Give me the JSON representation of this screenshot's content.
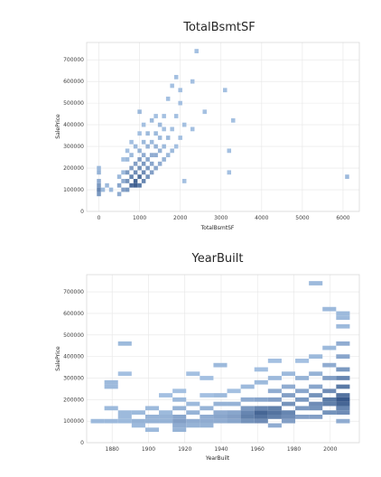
{
  "chart_data": [
    {
      "type": "heatmap",
      "title": "TotalBsmtSF",
      "xlabel": "TotalBsmtSF",
      "ylabel": "SalePrice",
      "xlim": [
        -300,
        6400
      ],
      "ylim": [
        0,
        780000
      ],
      "xticks": [
        0,
        1000,
        2000,
        3000,
        4000,
        5000,
        6000
      ],
      "yticks": [
        0,
        100000,
        200000,
        300000,
        400000,
        500000,
        600000,
        700000
      ],
      "xtick_labels": [
        "0",
        "1000",
        "2000",
        "3000",
        "4000",
        "5000",
        "6000"
      ],
      "ytick_labels": [
        "0",
        "100000",
        "200000",
        "300000",
        "400000",
        "500000",
        "600000",
        "700000"
      ],
      "grid": true,
      "bin_size": [
        100,
        20000
      ],
      "bins": [
        [
          0,
          80000,
          0.45
        ],
        [
          0,
          100000,
          0.6
        ],
        [
          0,
          120000,
          0.45
        ],
        [
          0,
          140000,
          0.3
        ],
        [
          0,
          180000,
          0.25
        ],
        [
          0,
          200000,
          0.2
        ],
        [
          100,
          100000,
          0.2
        ],
        [
          200,
          120000,
          0.2
        ],
        [
          300,
          100000,
          0.2
        ],
        [
          500,
          80000,
          0.3
        ],
        [
          500,
          120000,
          0.35
        ],
        [
          500,
          160000,
          0.2
        ],
        [
          600,
          100000,
          0.4
        ],
        [
          600,
          140000,
          0.3
        ],
        [
          600,
          180000,
          0.2
        ],
        [
          600,
          240000,
          0.15
        ],
        [
          700,
          100000,
          0.45
        ],
        [
          700,
          140000,
          0.5
        ],
        [
          700,
          180000,
          0.45
        ],
        [
          700,
          240000,
          0.2
        ],
        [
          700,
          280000,
          0.15
        ],
        [
          800,
          120000,
          0.8
        ],
        [
          800,
          160000,
          0.6
        ],
        [
          800,
          200000,
          0.4
        ],
        [
          800,
          260000,
          0.2
        ],
        [
          800,
          320000,
          0.15
        ],
        [
          900,
          120000,
          0.9
        ],
        [
          900,
          140000,
          0.85
        ],
        [
          900,
          180000,
          0.55
        ],
        [
          900,
          220000,
          0.4
        ],
        [
          900,
          300000,
          0.2
        ],
        [
          1000,
          120000,
          0.7
        ],
        [
          1000,
          160000,
          0.75
        ],
        [
          1000,
          200000,
          0.5
        ],
        [
          1000,
          240000,
          0.4
        ],
        [
          1000,
          280000,
          0.25
        ],
        [
          1000,
          360000,
          0.15
        ],
        [
          1000,
          460000,
          0.2
        ],
        [
          1100,
          140000,
          0.6
        ],
        [
          1100,
          180000,
          0.55
        ],
        [
          1100,
          220000,
          0.45
        ],
        [
          1100,
          260000,
          0.3
        ],
        [
          1100,
          320000,
          0.2
        ],
        [
          1100,
          400000,
          0.15
        ],
        [
          1200,
          160000,
          0.5
        ],
        [
          1200,
          200000,
          0.45
        ],
        [
          1200,
          240000,
          0.35
        ],
        [
          1200,
          300000,
          0.25
        ],
        [
          1200,
          360000,
          0.2
        ],
        [
          1300,
          180000,
          0.4
        ],
        [
          1300,
          220000,
          0.35
        ],
        [
          1300,
          260000,
          0.3
        ],
        [
          1300,
          320000,
          0.2
        ],
        [
          1300,
          420000,
          0.2
        ],
        [
          1400,
          200000,
          0.35
        ],
        [
          1400,
          260000,
          0.3
        ],
        [
          1400,
          300000,
          0.25
        ],
        [
          1400,
          360000,
          0.2
        ],
        [
          1400,
          440000,
          0.15
        ],
        [
          1500,
          220000,
          0.3
        ],
        [
          1500,
          280000,
          0.25
        ],
        [
          1500,
          340000,
          0.2
        ],
        [
          1500,
          400000,
          0.2
        ],
        [
          1600,
          240000,
          0.25
        ],
        [
          1600,
          300000,
          0.2
        ],
        [
          1600,
          380000,
          0.15
        ],
        [
          1600,
          440000,
          0.15
        ],
        [
          1700,
          260000,
          0.2
        ],
        [
          1700,
          340000,
          0.2
        ],
        [
          1700,
          520000,
          0.15
        ],
        [
          1800,
          280000,
          0.2
        ],
        [
          1800,
          380000,
          0.15
        ],
        [
          1800,
          580000,
          0.15
        ],
        [
          1900,
          300000,
          0.15
        ],
        [
          1900,
          440000,
          0.15
        ],
        [
          1900,
          620000,
          0.15
        ],
        [
          2000,
          340000,
          0.15
        ],
        [
          2000,
          500000,
          0.15
        ],
        [
          2000,
          560000,
          0.15
        ],
        [
          2100,
          140000,
          0.15
        ],
        [
          2100,
          400000,
          0.15
        ],
        [
          2300,
          380000,
          0.15
        ],
        [
          2300,
          600000,
          0.15
        ],
        [
          2400,
          740000,
          0.15
        ],
        [
          2600,
          460000,
          0.15
        ],
        [
          3100,
          560000,
          0.15
        ],
        [
          3200,
          180000,
          0.15
        ],
        [
          3200,
          280000,
          0.15
        ],
        [
          3300,
          420000,
          0.15
        ],
        [
          6100,
          160000,
          0.2
        ]
      ]
    },
    {
      "type": "heatmap",
      "title": "YearBuilt",
      "xlabel": "YearBuilt",
      "ylabel": "SalePrice",
      "xlim": [
        1866,
        2016
      ],
      "ylim": [
        0,
        780000
      ],
      "xticks": [
        1880,
        1900,
        1920,
        1940,
        1960,
        1980,
        2000
      ],
      "yticks": [
        0,
        100000,
        200000,
        300000,
        400000,
        500000,
        600000,
        700000
      ],
      "xtick_labels": [
        "1880",
        "1900",
        "1920",
        "1940",
        "1960",
        "1980",
        "2000"
      ],
      "ytick_labels": [
        "0",
        "100000",
        "200000",
        "300000",
        "400000",
        "500000",
        "600000",
        "700000"
      ],
      "grid": true,
      "bin_size": [
        7.5,
        20000
      ],
      "bins": [
        [
          1872,
          100000,
          0.2
        ],
        [
          1879.5,
          100000,
          0.2
        ],
        [
          1887,
          100000,
          0.2
        ],
        [
          1879.5,
          160000,
          0.2
        ],
        [
          1879.5,
          260000,
          0.2
        ],
        [
          1879.5,
          280000,
          0.2
        ],
        [
          1887,
          120000,
          0.2
        ],
        [
          1887,
          140000,
          0.2
        ],
        [
          1887,
          460000,
          0.2
        ],
        [
          1887,
          320000,
          0.15
        ],
        [
          1894.5,
          80000,
          0.2
        ],
        [
          1894.5,
          100000,
          0.25
        ],
        [
          1894.5,
          140000,
          0.2
        ],
        [
          1902,
          60000,
          0.2
        ],
        [
          1902,
          100000,
          0.25
        ],
        [
          1902,
          120000,
          0.25
        ],
        [
          1902,
          160000,
          0.2
        ],
        [
          1909.5,
          100000,
          0.25
        ],
        [
          1909.5,
          120000,
          0.25
        ],
        [
          1909.5,
          140000,
          0.2
        ],
        [
          1909.5,
          220000,
          0.15
        ],
        [
          1917,
          60000,
          0.25
        ],
        [
          1917,
          80000,
          0.3
        ],
        [
          1917,
          100000,
          0.4
        ],
        [
          1917,
          120000,
          0.35
        ],
        [
          1917,
          160000,
          0.25
        ],
        [
          1917,
          200000,
          0.2
        ],
        [
          1917,
          240000,
          0.15
        ],
        [
          1924.5,
          80000,
          0.25
        ],
        [
          1924.5,
          100000,
          0.3
        ],
        [
          1924.5,
          140000,
          0.25
        ],
        [
          1924.5,
          180000,
          0.2
        ],
        [
          1924.5,
          320000,
          0.15
        ],
        [
          1932,
          80000,
          0.25
        ],
        [
          1932,
          100000,
          0.3
        ],
        [
          1932,
          120000,
          0.3
        ],
        [
          1932,
          160000,
          0.25
        ],
        [
          1932,
          220000,
          0.15
        ],
        [
          1932,
          300000,
          0.15
        ],
        [
          1939.5,
          100000,
          0.3
        ],
        [
          1939.5,
          120000,
          0.35
        ],
        [
          1939.5,
          140000,
          0.3
        ],
        [
          1939.5,
          180000,
          0.25
        ],
        [
          1939.5,
          220000,
          0.2
        ],
        [
          1939.5,
          360000,
          0.2
        ],
        [
          1947,
          100000,
          0.35
        ],
        [
          1947,
          120000,
          0.4
        ],
        [
          1947,
          140000,
          0.35
        ],
        [
          1947,
          180000,
          0.25
        ],
        [
          1947,
          240000,
          0.15
        ],
        [
          1954.5,
          100000,
          0.5
        ],
        [
          1954.5,
          120000,
          0.65
        ],
        [
          1954.5,
          140000,
          0.6
        ],
        [
          1954.5,
          160000,
          0.45
        ],
        [
          1954.5,
          200000,
          0.3
        ],
        [
          1954.5,
          260000,
          0.2
        ],
        [
          1962,
          100000,
          0.55
        ],
        [
          1962,
          120000,
          0.75
        ],
        [
          1962,
          140000,
          0.85
        ],
        [
          1962,
          160000,
          0.6
        ],
        [
          1962,
          200000,
          0.35
        ],
        [
          1962,
          280000,
          0.2
        ],
        [
          1962,
          340000,
          0.15
        ],
        [
          1969.5,
          80000,
          0.3
        ],
        [
          1969.5,
          120000,
          0.65
        ],
        [
          1969.5,
          140000,
          0.75
        ],
        [
          1969.5,
          160000,
          0.65
        ],
        [
          1969.5,
          200000,
          0.4
        ],
        [
          1969.5,
          240000,
          0.3
        ],
        [
          1969.5,
          300000,
          0.2
        ],
        [
          1969.5,
          380000,
          0.15
        ],
        [
          1977,
          100000,
          0.4
        ],
        [
          1977,
          120000,
          0.55
        ],
        [
          1977,
          140000,
          0.6
        ],
        [
          1977,
          180000,
          0.5
        ],
        [
          1977,
          220000,
          0.4
        ],
        [
          1977,
          260000,
          0.3
        ],
        [
          1977,
          320000,
          0.2
        ],
        [
          1984.5,
          120000,
          0.4
        ],
        [
          1984.5,
          160000,
          0.45
        ],
        [
          1984.5,
          200000,
          0.45
        ],
        [
          1984.5,
          240000,
          0.35
        ],
        [
          1984.5,
          300000,
          0.25
        ],
        [
          1984.5,
          380000,
          0.15
        ],
        [
          1992,
          120000,
          0.4
        ],
        [
          1992,
          160000,
          0.5
        ],
        [
          1992,
          180000,
          0.55
        ],
        [
          1992,
          220000,
          0.5
        ],
        [
          1992,
          260000,
          0.35
        ],
        [
          1992,
          320000,
          0.25
        ],
        [
          1992,
          400000,
          0.2
        ],
        [
          1992,
          740000,
          0.2
        ],
        [
          1999.5,
          140000,
          0.5
        ],
        [
          1999.5,
          180000,
          0.65
        ],
        [
          1999.5,
          200000,
          0.7
        ],
        [
          1999.5,
          240000,
          0.55
        ],
        [
          1999.5,
          300000,
          0.4
        ],
        [
          1999.5,
          360000,
          0.3
        ],
        [
          1999.5,
          440000,
          0.2
        ],
        [
          1999.5,
          620000,
          0.2
        ],
        [
          2007,
          100000,
          0.3
        ],
        [
          2007,
          140000,
          0.55
        ],
        [
          2007,
          160000,
          0.6
        ],
        [
          2007,
          180000,
          0.85
        ],
        [
          2007,
          200000,
          0.95
        ],
        [
          2007,
          220000,
          0.75
        ],
        [
          2007,
          260000,
          0.7
        ],
        [
          2007,
          300000,
          0.6
        ],
        [
          2007,
          340000,
          0.45
        ],
        [
          2007,
          400000,
          0.35
        ],
        [
          2007,
          460000,
          0.3
        ],
        [
          2007,
          540000,
          0.2
        ],
        [
          2007,
          580000,
          0.2
        ],
        [
          2007,
          600000,
          0.2
        ]
      ]
    }
  ]
}
